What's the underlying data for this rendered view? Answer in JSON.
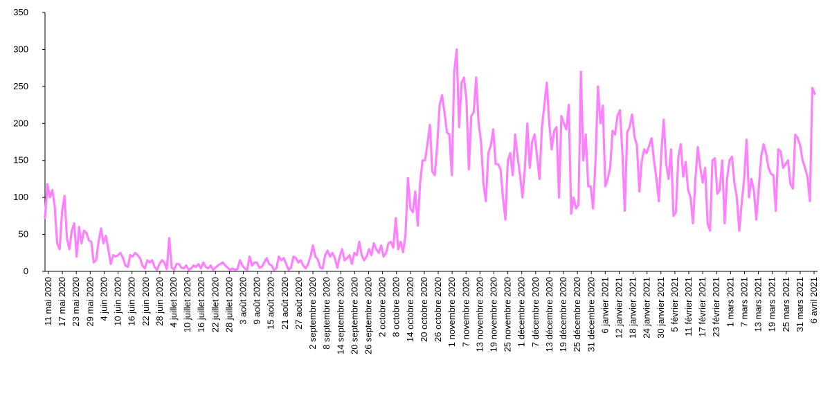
{
  "chart_data": {
    "type": "line",
    "title": "",
    "xlabel": "",
    "ylabel": "",
    "ylim": [
      0,
      350
    ],
    "yticks": [
      "0",
      "50",
      "100",
      "150",
      "200",
      "250",
      "300",
      "350"
    ],
    "grid": false,
    "legend": "none",
    "series_color": "#ff80ff",
    "x_start": "11 mai 2020",
    "x_end": "6 avril 2021",
    "x_tick_labels": [
      "11 mai 2020",
      "17 mai 2020",
      "23 mai 2020",
      "29 mai 2020",
      "4 juin 2020",
      "10 juin 2020",
      "16 juin 2020",
      "22 juin 2020",
      "28 juin 2020",
      "4 juillet 2020",
      "10 juillet 2020",
      "16 juillet 2020",
      "22 juillet 2020",
      "28 juillet 2020",
      "3 août 2020",
      "9 août 2020",
      "15 août 2020",
      "21 août 2020",
      "27 août 2020",
      "2 septembre 2020",
      "8 septembre 2020",
      "14 septembre 2020",
      "20 septembre 2020",
      "26 septembre 2020",
      "2 octobre 2020",
      "8 octobre 2020",
      "14 octobre 2020",
      "20 octobre 2020",
      "26 octobre 2020",
      "1 novembre 2020",
      "7 novembre 2020",
      "13 novembre 2020",
      "19 novembre 2020",
      "25 novembre 2020",
      "1 décembre 2020",
      "7 décembre 2020",
      "13 décembre 2020",
      "19 décembre 2020",
      "25 décembre 2020",
      "31 décembre 2020",
      "6 janvier 2021",
      "12 janvier 2021",
      "18 janvier 2021",
      "24 janvier 2021",
      "30 janvier 2021",
      "5 février 2021",
      "11 février 2021",
      "17 février 2021",
      "23 février 2021",
      "1 mars 2021",
      "7 mars 2021",
      "13 mars 2021",
      "19 mars 2021",
      "25 mars 2021",
      "31 mars 2021",
      "6 avril 2021"
    ],
    "series": [
      {
        "values": [
          72,
          118,
          100,
          110,
          88,
          38,
          30,
          80,
          102,
          45,
          30,
          55,
          65,
          20,
          60,
          38,
          55,
          52,
          42,
          40,
          12,
          15,
          40,
          58,
          38,
          48,
          30,
          10,
          22,
          20,
          22,
          25,
          18,
          8,
          6,
          22,
          20,
          25,
          22,
          18,
          8,
          4,
          15,
          12,
          15,
          6,
          2,
          10,
          15,
          12,
          3,
          45,
          5,
          2,
          10,
          10,
          5,
          4,
          8,
          2,
          4,
          8,
          6,
          10,
          4,
          12,
          6,
          4,
          8,
          2,
          5,
          8,
          10,
          12,
          8,
          5,
          2,
          4,
          2,
          3,
          15,
          8,
          4,
          2,
          20,
          8,
          12,
          12,
          5,
          6,
          12,
          18,
          10,
          8,
          2,
          4,
          20,
          15,
          18,
          10,
          2,
          5,
          20,
          18,
          12,
          15,
          8,
          4,
          10,
          20,
          35,
          20,
          16,
          5,
          4,
          22,
          28,
          20,
          25,
          18,
          5,
          20,
          30,
          15,
          18,
          22,
          10,
          25,
          22,
          40,
          22,
          15,
          20,
          30,
          22,
          38,
          30,
          25,
          35,
          20,
          25,
          38,
          40,
          32,
          72,
          30,
          40,
          26,
          50,
          126,
          85,
          80,
          108,
          62,
          120,
          150,
          150,
          172,
          198,
          135,
          130,
          170,
          225,
          238,
          215,
          188,
          185,
          130,
          270,
          300,
          195,
          255,
          262,
          232,
          138,
          210,
          215,
          262,
          200,
          175,
          118,
          95,
          160,
          170,
          192,
          145,
          145,
          138,
          100,
          70,
          150,
          160,
          130,
          185,
          155,
          130,
          100,
          140,
          200,
          140,
          175,
          185,
          155,
          125,
          195,
          225,
          255,
          200,
          165,
          190,
          195,
          100,
          210,
          200,
          192,
          225,
          78,
          100,
          85,
          90,
          270,
          150,
          185,
          115,
          115,
          85,
          150,
          250,
          200,
          224,
          115,
          125,
          140,
          190,
          185,
          210,
          218,
          162,
          82,
          188,
          195,
          212,
          182,
          170,
          108,
          150,
          165,
          160,
          170,
          180,
          150,
          125,
          95,
          160,
          205,
          145,
          125,
          165,
          75,
          80,
          155,
          172,
          128,
          148,
          110,
          100,
          65,
          125,
          168,
          140,
          120,
          140,
          65,
          55,
          150,
          153,
          105,
          110,
          150,
          65,
          125,
          150,
          155,
          120,
          100,
          55,
          92,
          125,
          178,
          100,
          125,
          110,
          70,
          112,
          155,
          172,
          160,
          140,
          132,
          130,
          82,
          165,
          162,
          140,
          145,
          150,
          118,
          112,
          185,
          180,
          170,
          150,
          140,
          128,
          95,
          248,
          240
        ]
      }
    ]
  }
}
